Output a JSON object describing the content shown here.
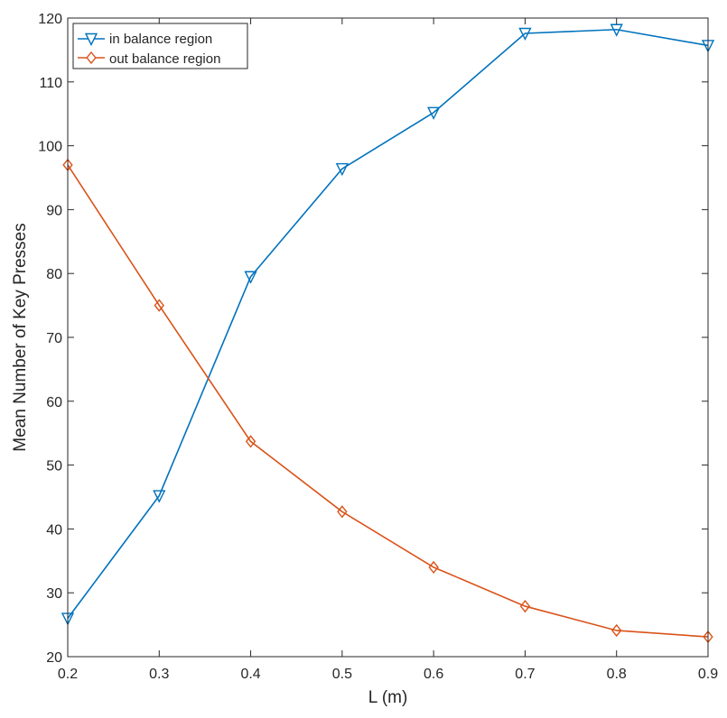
{
  "chart_data": {
    "type": "line",
    "title": "",
    "xlabel": "L  (m)",
    "ylabel": "Mean Number of Key Presses",
    "x": [
      0.2,
      0.3,
      0.4,
      0.5,
      0.6,
      0.7,
      0.8,
      0.9
    ],
    "xlim": [
      0.2,
      0.9
    ],
    "ylim": [
      20,
      120
    ],
    "xticks": [
      "0.2",
      "0.3",
      "0.4",
      "0.5",
      "0.6",
      "0.7",
      "0.8",
      "0.9"
    ],
    "yticks": [
      "20",
      "30",
      "40",
      "50",
      "60",
      "70",
      "80",
      "90",
      "100",
      "110",
      "120"
    ],
    "grid": false,
    "legend_position": "top-left",
    "series": [
      {
        "name": "in balance region",
        "marker": "triangle-down",
        "color": "#0072BD",
        "values": [
          26.0,
          45.2,
          79.5,
          96.4,
          105.2,
          117.6,
          118.2,
          115.7
        ]
      },
      {
        "name": "out balance region",
        "marker": "diamond",
        "color": "#D95319",
        "values": [
          97.0,
          75.0,
          53.7,
          42.7,
          34.0,
          27.9,
          24.1,
          23.1
        ]
      }
    ]
  }
}
